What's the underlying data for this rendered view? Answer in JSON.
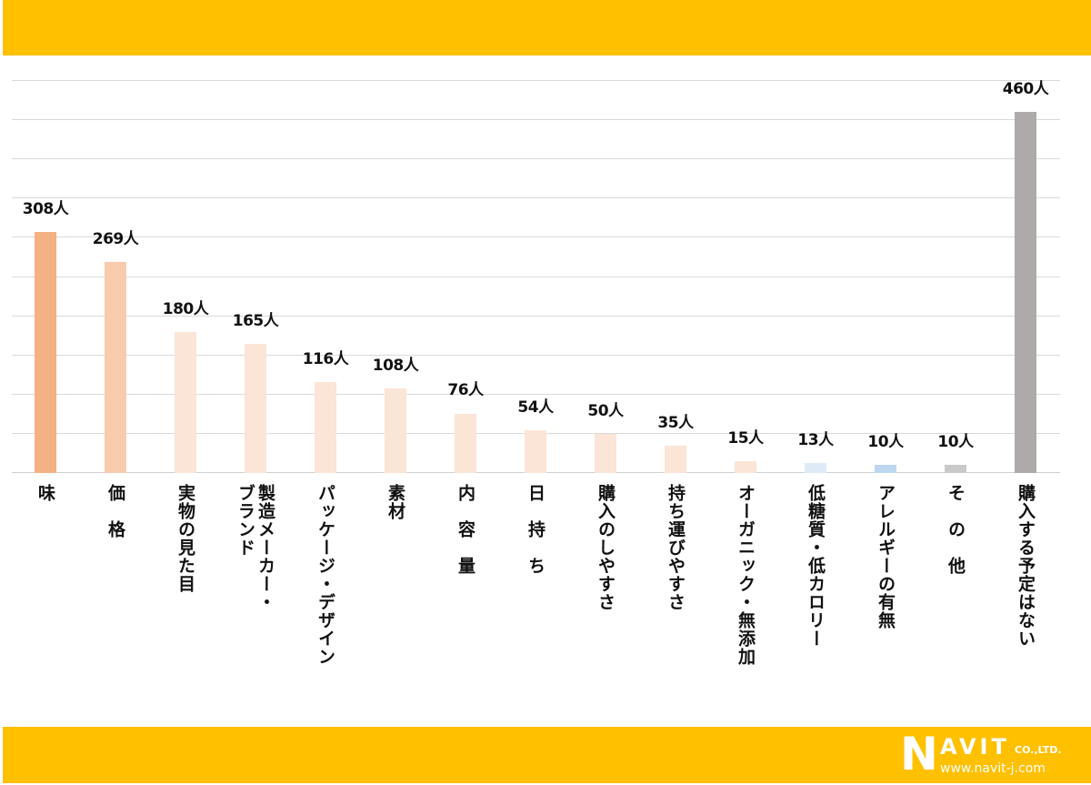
{
  "header_band": {
    "color": "#FFC000"
  },
  "footer_band": {
    "color": "#FFC000",
    "logo": {
      "n": "N",
      "avit": "AVIT",
      "co": "CO.,LTD.",
      "url": "www.navit-j.com"
    }
  },
  "chart_data": {
    "type": "bar",
    "title": "",
    "xlabel": "",
    "ylabel": "",
    "ylim": [
      0,
      500
    ],
    "grid": true,
    "gridline_step": 50,
    "unit_suffix": "人",
    "categories": [
      "味",
      "価格",
      "実物の見た目",
      "製造メーカー・ブランド",
      "パッケージ・デザイン",
      "素材",
      "内容量",
      "日持ち",
      "購入のしやすさ",
      "持ち運びやすさ",
      "オーガニック・無添加",
      "低糖質・低カロリー",
      "アレルギーの有無",
      "その他",
      "購入する予定はない"
    ],
    "values": [
      308,
      269,
      180,
      165,
      116,
      108,
      76,
      54,
      50,
      35,
      15,
      13,
      10,
      10,
      460
    ],
    "value_labels": [
      "308人",
      "269人",
      "180人",
      "165人",
      "116人",
      "108人",
      "76人",
      "54人",
      "50人",
      "35人",
      "15人",
      "13人",
      "10人",
      "10人",
      "460人"
    ],
    "colors": [
      "#F4B183",
      "#F8CBAD",
      "#FBE5D6",
      "#FBE5D6",
      "#FBE5D6",
      "#FBE5D6",
      "#FBE5D6",
      "#FBE5D6",
      "#FBE5D6",
      "#FBE5D6",
      "#FBE5D6",
      "#DEEBF7",
      "#BDD7EE",
      "#C9C9C9",
      "#AEAAAA"
    ],
    "display_labels": [
      "味",
      "価　格",
      "実物の見た目",
      "製造メーカー・\nブランド",
      "パッケージ・デザイン",
      "素材",
      "内　容　量",
      "日　持　ち",
      "購入のしやすさ",
      "持ち運びやすさ",
      "オーガニック・無添加",
      "低糖質・低カロリー",
      "アレルギーの有無",
      "そ　の　他",
      "購入する予定はない"
    ],
    "legend": null
  }
}
